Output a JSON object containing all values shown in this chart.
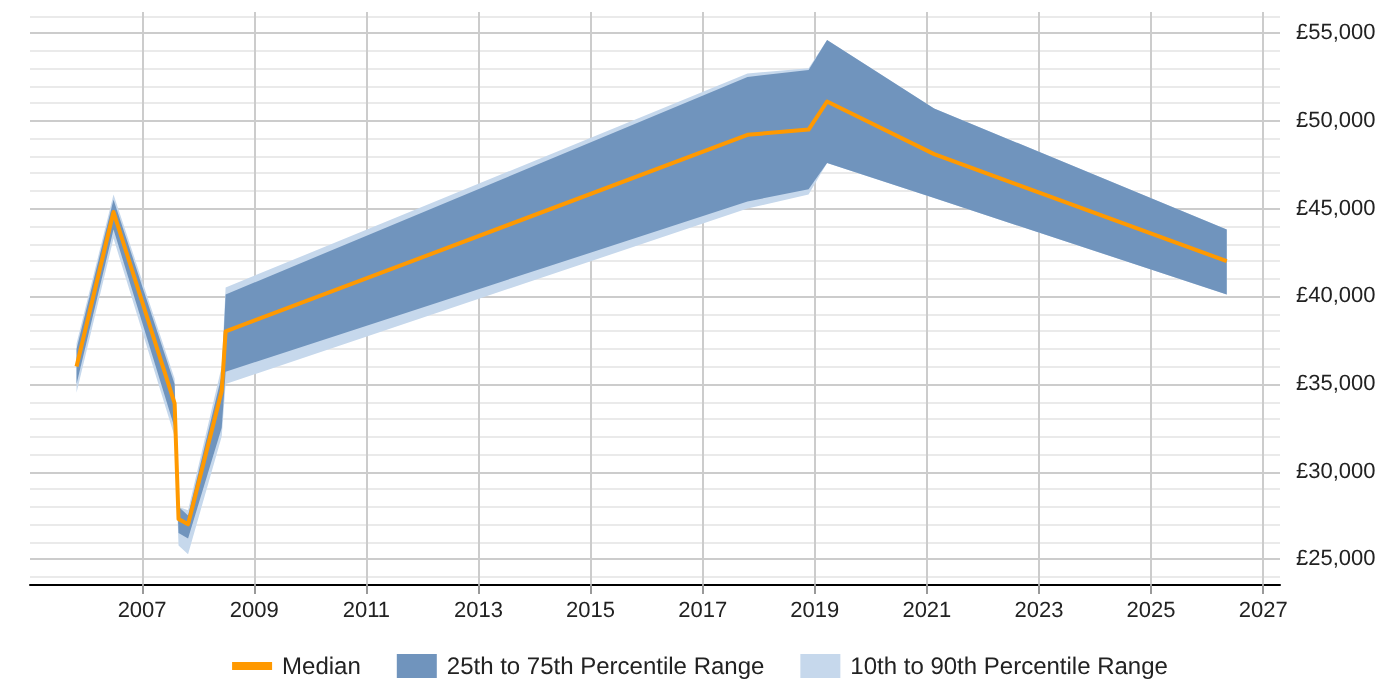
{
  "chart_data": {
    "type": "line",
    "legend": "bottom",
    "grid": true,
    "xlim": [
      2005,
      2027.3
    ],
    "xticks": [
      2007,
      2009,
      2011,
      2013,
      2015,
      2017,
      2019,
      2021,
      2023,
      2025,
      2027
    ],
    "ylim": [
      23600,
      56200
    ],
    "yticks": [
      {
        "value": 25000,
        "label": "£25,000"
      },
      {
        "value": 30000,
        "label": "£30,000"
      },
      {
        "value": 35000,
        "label": "£35,000"
      },
      {
        "value": 40000,
        "label": "£40,000"
      },
      {
        "value": 45000,
        "label": "£45,000"
      },
      {
        "value": 50000,
        "label": "£50,000"
      },
      {
        "value": 55000,
        "label": "£55,000"
      }
    ],
    "x": [
      2005.83,
      2006.49,
      2007.58,
      2007.65,
      2007.82,
      2008.42,
      2008.49,
      2017.8,
      2018.89,
      2019.22,
      2021.13,
      2026.35
    ],
    "series": [
      {
        "name": "Median",
        "color": "#ff9900",
        "values": [
          36000,
          44800,
          33900,
          27300,
          27000,
          34600,
          38000,
          49200,
          49500,
          51100,
          48100,
          42000
        ]
      },
      {
        "name": "25th to 75th Percentile Range",
        "type": "area",
        "color": "#7094bd",
        "values": [
          null,
          null,
          null,
          null,
          null,
          null,
          null,
          null,
          null,
          null,
          null,
          null
        ],
        "lower": [
          35000,
          43800,
          32500,
          26500,
          26200,
          32500,
          35700,
          45400,
          46100,
          47600,
          45600,
          40100
        ],
        "upper": [
          37000,
          45500,
          35000,
          28000,
          27500,
          35500,
          40100,
          52500,
          52900,
          54600,
          50700,
          43800
        ]
      },
      {
        "name": "10th to 90th Percentile Range",
        "type": "area",
        "color": "#c6d8ec",
        "values": [
          null,
          null,
          null,
          null,
          null,
          null,
          null,
          null,
          null,
          null,
          null,
          null
        ],
        "lower": [
          34500,
          43300,
          32000,
          25800,
          25300,
          32000,
          35000,
          45000,
          45800,
          47600,
          45600,
          40100
        ],
        "upper": [
          37300,
          45800,
          35300,
          28000,
          27800,
          36000,
          40500,
          52700,
          53000,
          54600,
          50700,
          43800
        ]
      }
    ]
  }
}
